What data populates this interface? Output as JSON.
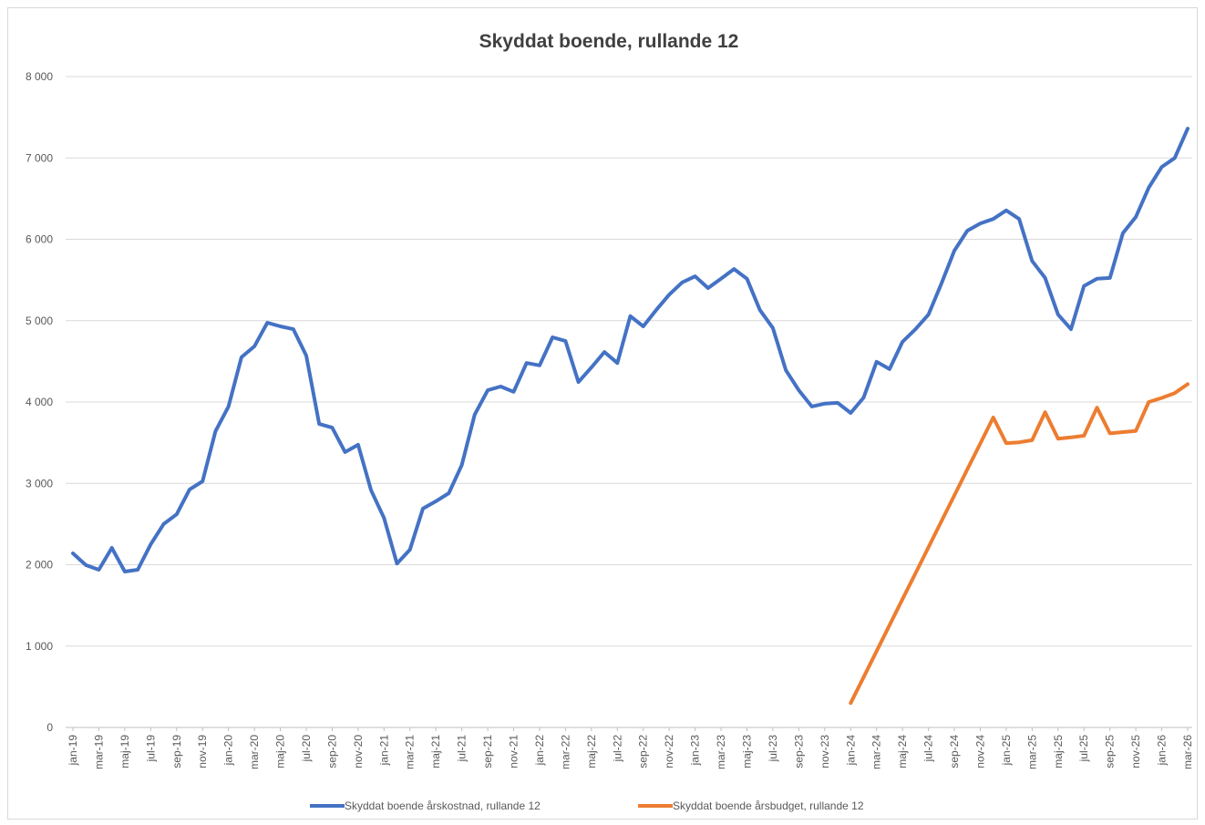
{
  "chart_data": {
    "type": "line",
    "title": "Skyddat boende, rullande 12",
    "categories": [
      "jan-19",
      null,
      "mar-19",
      null,
      "maj-19",
      null,
      "jul-19",
      null,
      "sep-19",
      null,
      "nov-19",
      null,
      "jan-20",
      null,
      "mar-20",
      null,
      "maj-20",
      null,
      "jul-20",
      null,
      "sep-20",
      null,
      "nov-20",
      null,
      "jan-21",
      null,
      "mar-21",
      null,
      "maj-21",
      null,
      "jul-21",
      null,
      "sep-21",
      null,
      "nov-21",
      null,
      "jan-22",
      null,
      "mar-22",
      null,
      "maj-22",
      null,
      "jul-22",
      null,
      "sep-22",
      null,
      "nov-22",
      null,
      "jan-23",
      null,
      "mar-23",
      null,
      "maj-23",
      null,
      "jul-23",
      null,
      "sep-23",
      null,
      "nov-23",
      null,
      "jan-24",
      null,
      "mar-24",
      null,
      "maj-24",
      null,
      "jul-24",
      null,
      "sep-24",
      null,
      "nov-24",
      null,
      "jan-25",
      null,
      "mar-25",
      null,
      "maj-25",
      null,
      "jul-25",
      null,
      "sep-25",
      null,
      "nov-25",
      null,
      "jan-26",
      null,
      "mar-26"
    ],
    "series": [
      {
        "name": "Skyddat boende årskostnad, rullande 12",
        "color": "#4472c4",
        "values": [
          2140,
          1995,
          1938,
          2207,
          1916,
          1938,
          2250,
          2500,
          2620,
          2925,
          3025,
          3640,
          3945,
          4550,
          4685,
          4975,
          4930,
          4895,
          4570,
          3730,
          3685,
          3385,
          3475,
          2915,
          2575,
          2015,
          2185,
          2690,
          2780,
          2880,
          3225,
          3845,
          4145,
          4190,
          4125,
          4480,
          4450,
          4795,
          4750,
          4245,
          4425,
          4615,
          4480,
          5055,
          4930,
          5130,
          5320,
          5470,
          5545,
          5400,
          5515,
          5635,
          5515,
          5130,
          4910,
          4390,
          4145,
          3945,
          3980,
          3990,
          3865,
          4055,
          4495,
          4405,
          4740,
          4895,
          5075,
          5455,
          5860,
          6105,
          6195,
          6250,
          6355,
          6250,
          5735,
          5525,
          5075,
          4895,
          5425,
          5515,
          5525,
          6075,
          6275,
          6635,
          6890,
          7000,
          7360
        ]
      },
      {
        "name": "Skyddat boende årsbudget, rullande 12",
        "color": "#ed7d31",
        "values": [
          null,
          null,
          null,
          null,
          null,
          null,
          null,
          null,
          null,
          null,
          null,
          null,
          null,
          null,
          null,
          null,
          null,
          null,
          null,
          null,
          null,
          null,
          null,
          null,
          null,
          null,
          null,
          null,
          null,
          null,
          null,
          null,
          null,
          null,
          null,
          null,
          null,
          null,
          null,
          null,
          null,
          null,
          null,
          null,
          null,
          null,
          null,
          null,
          null,
          null,
          null,
          null,
          null,
          null,
          null,
          null,
          null,
          null,
          null,
          null,
          300,
          619,
          938,
          1257,
          1576,
          1895,
          2214,
          2533,
          2852,
          3171,
          3490,
          3810,
          3495,
          3505,
          3530,
          3875,
          3550,
          3565,
          3585,
          3930,
          3615,
          3630,
          3645,
          4000,
          4050,
          4110,
          4220
        ]
      }
    ],
    "ylim": [
      0,
      8000
    ],
    "yticks": [
      0,
      {
        "value": 1000,
        "label": "1 000"
      },
      {
        "value": 2000,
        "label": "2 000"
      },
      {
        "value": 3000,
        "label": "3 000"
      },
      {
        "value": 4000,
        "label": "4 000"
      },
      {
        "value": 5000,
        "label": "5 000"
      },
      {
        "value": 6000,
        "label": "6 000"
      },
      {
        "value": 7000,
        "label": "7 000"
      },
      {
        "value": 8000,
        "label": "8 000"
      }
    ],
    "grid": true,
    "legend": "bottom"
  }
}
